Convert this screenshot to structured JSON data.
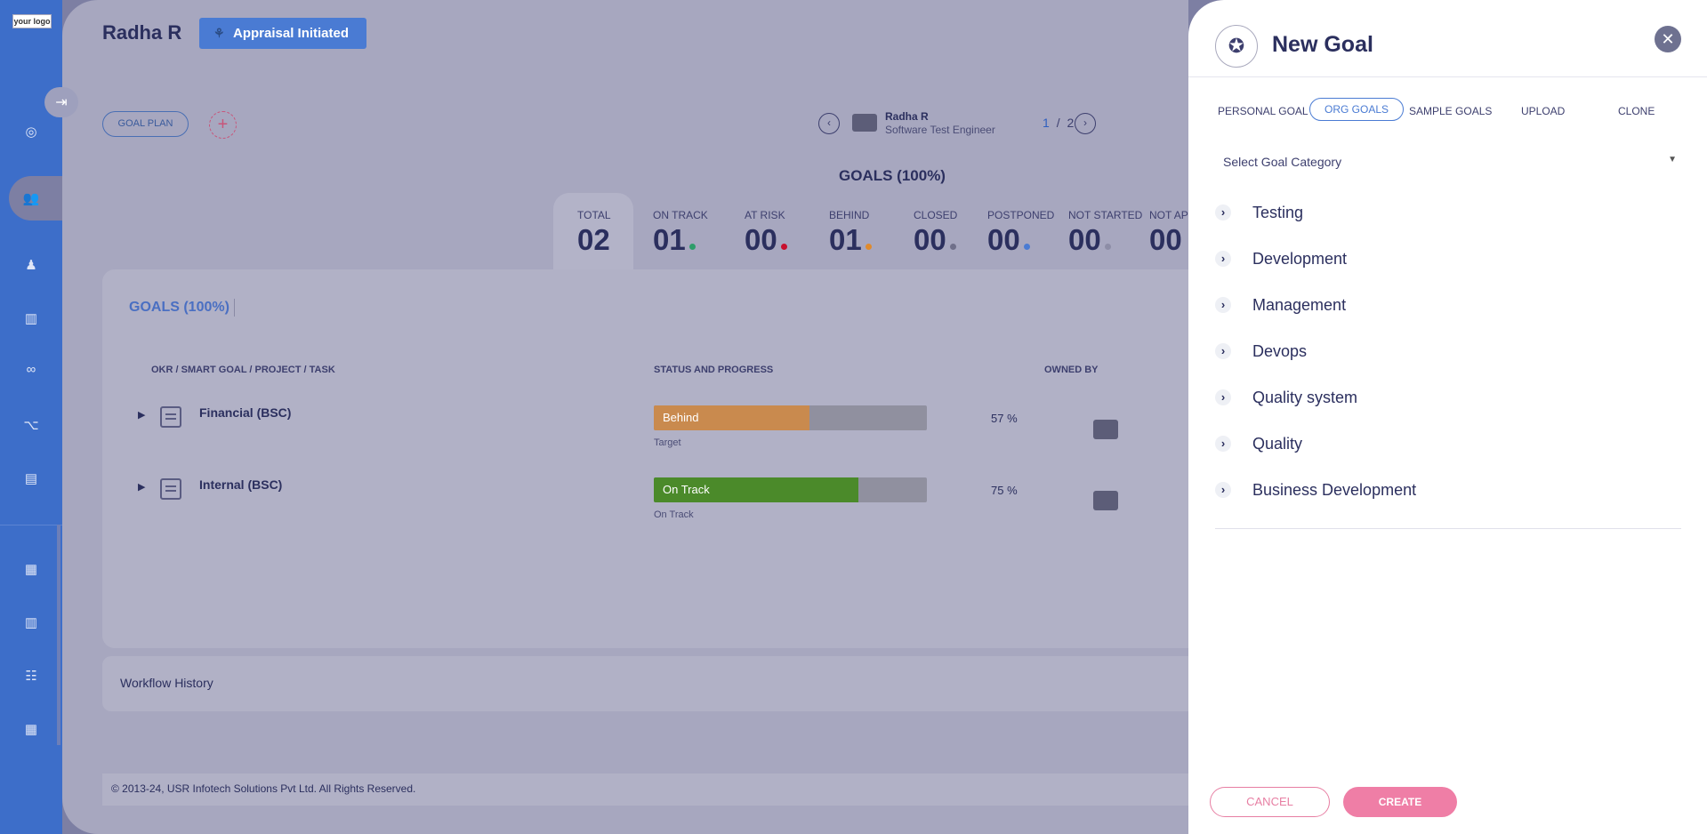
{
  "sidebar": {
    "logo": "your logo",
    "icons": [
      "target-icon",
      "people-icon",
      "person-icon",
      "book-icon",
      "handshake-icon",
      "hierarchy-icon",
      "document-icon",
      "chart-icon",
      "book2-icon",
      "team-icon",
      "report-icon"
    ]
  },
  "header": {
    "employee_name": "Radha R",
    "status_badge": "Appraisal Initiated"
  },
  "toolbar": {
    "goal_plan": "GOAL PLAN",
    "add": "+"
  },
  "employee_nav": {
    "prev": "‹",
    "next": "›",
    "name": "Radha R",
    "role": "Software Test Engineer",
    "page_current": "1",
    "page_sep": "/",
    "page_total": "2"
  },
  "summary": {
    "title": "GOALS (100%)",
    "stats": [
      {
        "label": "TOTAL",
        "value": "02",
        "color": ""
      },
      {
        "label": "ON TRACK",
        "value": "01",
        "color": "#2e9d6a"
      },
      {
        "label": "AT RISK",
        "value": "00",
        "color": "#c8102e"
      },
      {
        "label": "BEHIND",
        "value": "01",
        "color": "#e08a2c"
      },
      {
        "label": "CLOSED",
        "value": "00",
        "color": "#70708a"
      },
      {
        "label": "POSTPONED",
        "value": "00",
        "color": "#4a7bd3"
      },
      {
        "label": "NOT STARTED",
        "value": "00",
        "color": "#8d8da6"
      },
      {
        "label": "NOT API",
        "value": "00",
        "color": ""
      }
    ]
  },
  "goals_card": {
    "title": "GOALS (100%)",
    "columns": [
      "OKR / SMART GOAL / PROJECT / TASK",
      "STATUS AND PROGRESS",
      "OWNED BY"
    ],
    "rows": [
      {
        "name": "Financial (BSC)",
        "status": "Behind",
        "progress": 0.57,
        "color": "#c98a4e",
        "sub": "Target",
        "pct": "57 %"
      },
      {
        "name": "Internal (BSC)",
        "status": "On Track",
        "progress": 0.75,
        "color": "#4b8a2a",
        "sub": "On Track",
        "pct": "75 %"
      }
    ]
  },
  "workflow": {
    "label": "Workflow History"
  },
  "footer": {
    "text": "© 2013-24, USR Infotech Solutions Pvt Ltd. All Rights Reserved."
  },
  "panel": {
    "title": "New Goal",
    "close": "✕",
    "tabs": [
      "PERSONAL GOAL",
      "ORG GOALS",
      "SAMPLE GOALS",
      "UPLOAD",
      "CLONE"
    ],
    "active_tab": "ORG GOALS",
    "category_placeholder": "Select Goal Category",
    "categories": [
      "Testing",
      "Development",
      "Management",
      "Devops",
      "Quality system",
      "Quality",
      "Business Development"
    ],
    "cancel": "CANCEL",
    "create": "CREATE"
  }
}
